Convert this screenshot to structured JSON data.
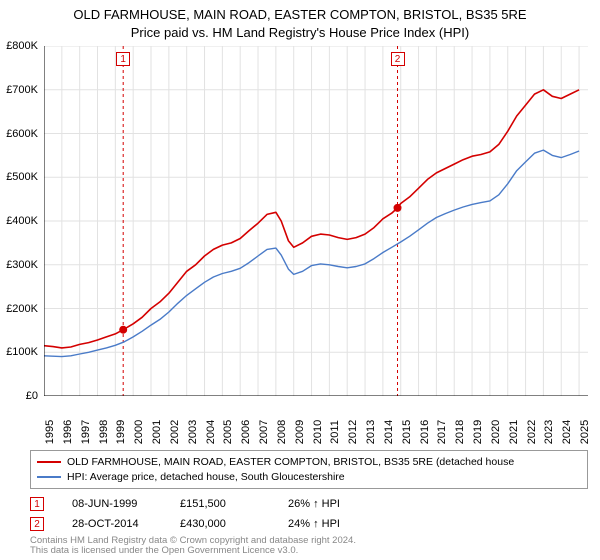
{
  "title": {
    "line1": "OLD FARMHOUSE, MAIN ROAD, EASTER COMPTON, BRISTOL, BS35 5RE",
    "line2": "Price paid vs. HM Land Registry's House Price Index (HPI)",
    "fontsize": 13,
    "color": "#000000"
  },
  "chart": {
    "type": "line",
    "background_color": "#ffffff",
    "grid_color": "#e2e2e2",
    "axis_color": "#000000",
    "x": {
      "min": 1995,
      "max": 2025.5,
      "ticks": [
        1995,
        1996,
        1997,
        1998,
        1999,
        2000,
        2001,
        2002,
        2003,
        2004,
        2005,
        2006,
        2007,
        2008,
        2009,
        2010,
        2011,
        2012,
        2013,
        2014,
        2015,
        2016,
        2017,
        2018,
        2019,
        2020,
        2021,
        2022,
        2023,
        2024,
        2025
      ],
      "label_fontsize": 11
    },
    "y": {
      "min": 0,
      "max": 800000,
      "ticks": [
        0,
        100000,
        200000,
        300000,
        400000,
        500000,
        600000,
        700000,
        800000
      ],
      "tick_labels": [
        "£0",
        "£100K",
        "£200K",
        "£300K",
        "£400K",
        "£500K",
        "£600K",
        "£700K",
        "£800K"
      ],
      "label_fontsize": 11
    },
    "series": [
      {
        "name": "price_paid",
        "label": "OLD FARMHOUSE, MAIN ROAD, EASTER COMPTON, BRISTOL, BS35 5RE (detached house",
        "color": "#d40000",
        "line_width": 1.6,
        "data": [
          [
            1995,
            115000
          ],
          [
            1995.5,
            113000
          ],
          [
            1996,
            110000
          ],
          [
            1996.5,
            112000
          ],
          [
            1997,
            118000
          ],
          [
            1997.5,
            122000
          ],
          [
            1998,
            128000
          ],
          [
            1998.5,
            135000
          ],
          [
            1999,
            142000
          ],
          [
            1999.44,
            151500
          ],
          [
            2000,
            165000
          ],
          [
            2000.5,
            180000
          ],
          [
            2001,
            200000
          ],
          [
            2001.5,
            215000
          ],
          [
            2002,
            235000
          ],
          [
            2002.5,
            260000
          ],
          [
            2003,
            285000
          ],
          [
            2003.5,
            300000
          ],
          [
            2004,
            320000
          ],
          [
            2004.5,
            335000
          ],
          [
            2005,
            345000
          ],
          [
            2005.5,
            350000
          ],
          [
            2006,
            360000
          ],
          [
            2006.5,
            378000
          ],
          [
            2007,
            395000
          ],
          [
            2007.5,
            415000
          ],
          [
            2008,
            420000
          ],
          [
            2008.3,
            400000
          ],
          [
            2008.7,
            355000
          ],
          [
            2009,
            340000
          ],
          [
            2009.5,
            350000
          ],
          [
            2010,
            365000
          ],
          [
            2010.5,
            370000
          ],
          [
            2011,
            368000
          ],
          [
            2011.5,
            362000
          ],
          [
            2012,
            358000
          ],
          [
            2012.5,
            362000
          ],
          [
            2013,
            370000
          ],
          [
            2013.5,
            385000
          ],
          [
            2014,
            405000
          ],
          [
            2014.5,
            418000
          ],
          [
            2014.82,
            430000
          ],
          [
            2015,
            440000
          ],
          [
            2015.5,
            455000
          ],
          [
            2016,
            475000
          ],
          [
            2016.5,
            495000
          ],
          [
            2017,
            510000
          ],
          [
            2017.5,
            520000
          ],
          [
            2018,
            530000
          ],
          [
            2018.5,
            540000
          ],
          [
            2019,
            548000
          ],
          [
            2019.5,
            552000
          ],
          [
            2020,
            558000
          ],
          [
            2020.5,
            575000
          ],
          [
            2021,
            605000
          ],
          [
            2021.5,
            640000
          ],
          [
            2022,
            665000
          ],
          [
            2022.5,
            690000
          ],
          [
            2023,
            700000
          ],
          [
            2023.5,
            685000
          ],
          [
            2024,
            680000
          ],
          [
            2024.5,
            690000
          ],
          [
            2025,
            700000
          ]
        ]
      },
      {
        "name": "hpi",
        "label": "HPI: Average price, detached house, South Gloucestershire",
        "color": "#4a7bc8",
        "line_width": 1.4,
        "data": [
          [
            1995,
            92000
          ],
          [
            1995.5,
            91000
          ],
          [
            1996,
            90000
          ],
          [
            1996.5,
            92000
          ],
          [
            1997,
            96000
          ],
          [
            1997.5,
            100000
          ],
          [
            1998,
            105000
          ],
          [
            1998.5,
            110000
          ],
          [
            1999,
            116000
          ],
          [
            1999.5,
            124000
          ],
          [
            2000,
            135000
          ],
          [
            2000.5,
            148000
          ],
          [
            2001,
            162000
          ],
          [
            2001.5,
            175000
          ],
          [
            2002,
            192000
          ],
          [
            2002.5,
            212000
          ],
          [
            2003,
            230000
          ],
          [
            2003.5,
            245000
          ],
          [
            2004,
            260000
          ],
          [
            2004.5,
            272000
          ],
          [
            2005,
            280000
          ],
          [
            2005.5,
            285000
          ],
          [
            2006,
            292000
          ],
          [
            2006.5,
            305000
          ],
          [
            2007,
            320000
          ],
          [
            2007.5,
            335000
          ],
          [
            2008,
            338000
          ],
          [
            2008.3,
            322000
          ],
          [
            2008.7,
            290000
          ],
          [
            2009,
            278000
          ],
          [
            2009.5,
            285000
          ],
          [
            2010,
            298000
          ],
          [
            2010.5,
            302000
          ],
          [
            2011,
            300000
          ],
          [
            2011.5,
            296000
          ],
          [
            2012,
            293000
          ],
          [
            2012.5,
            296000
          ],
          [
            2013,
            302000
          ],
          [
            2013.5,
            314000
          ],
          [
            2014,
            328000
          ],
          [
            2014.5,
            340000
          ],
          [
            2015,
            352000
          ],
          [
            2015.5,
            365000
          ],
          [
            2016,
            380000
          ],
          [
            2016.5,
            395000
          ],
          [
            2017,
            408000
          ],
          [
            2017.5,
            417000
          ],
          [
            2018,
            425000
          ],
          [
            2018.5,
            432000
          ],
          [
            2019,
            438000
          ],
          [
            2019.5,
            442000
          ],
          [
            2020,
            446000
          ],
          [
            2020.5,
            460000
          ],
          [
            2021,
            485000
          ],
          [
            2021.5,
            515000
          ],
          [
            2022,
            535000
          ],
          [
            2022.5,
            555000
          ],
          [
            2023,
            562000
          ],
          [
            2023.5,
            550000
          ],
          [
            2024,
            545000
          ],
          [
            2024.5,
            552000
          ],
          [
            2025,
            560000
          ]
        ]
      }
    ],
    "markers": [
      {
        "n": "1",
        "x": 1999.44,
        "y": 151500,
        "color": "#d40000",
        "radius": 4,
        "date": "08-JUN-1999",
        "price": "£151,500",
        "pct": "26% ↑ HPI"
      },
      {
        "n": "2",
        "x": 2014.82,
        "y": 430000,
        "color": "#d40000",
        "radius": 4,
        "date": "28-OCT-2014",
        "price": "£430,000",
        "pct": "24% ↑ HPI"
      }
    ],
    "vlines": {
      "color": "#d40000",
      "dash": "3,3",
      "width": 1
    }
  },
  "legend": {
    "border_color": "#999999",
    "fontsize": 10.5
  },
  "footer": {
    "line1": "Contains HM Land Registry data © Crown copyright and database right 2024.",
    "line2": "This data is licensed under the Open Government Licence v3.0.",
    "color": "#888888",
    "fontsize": 9.5
  }
}
